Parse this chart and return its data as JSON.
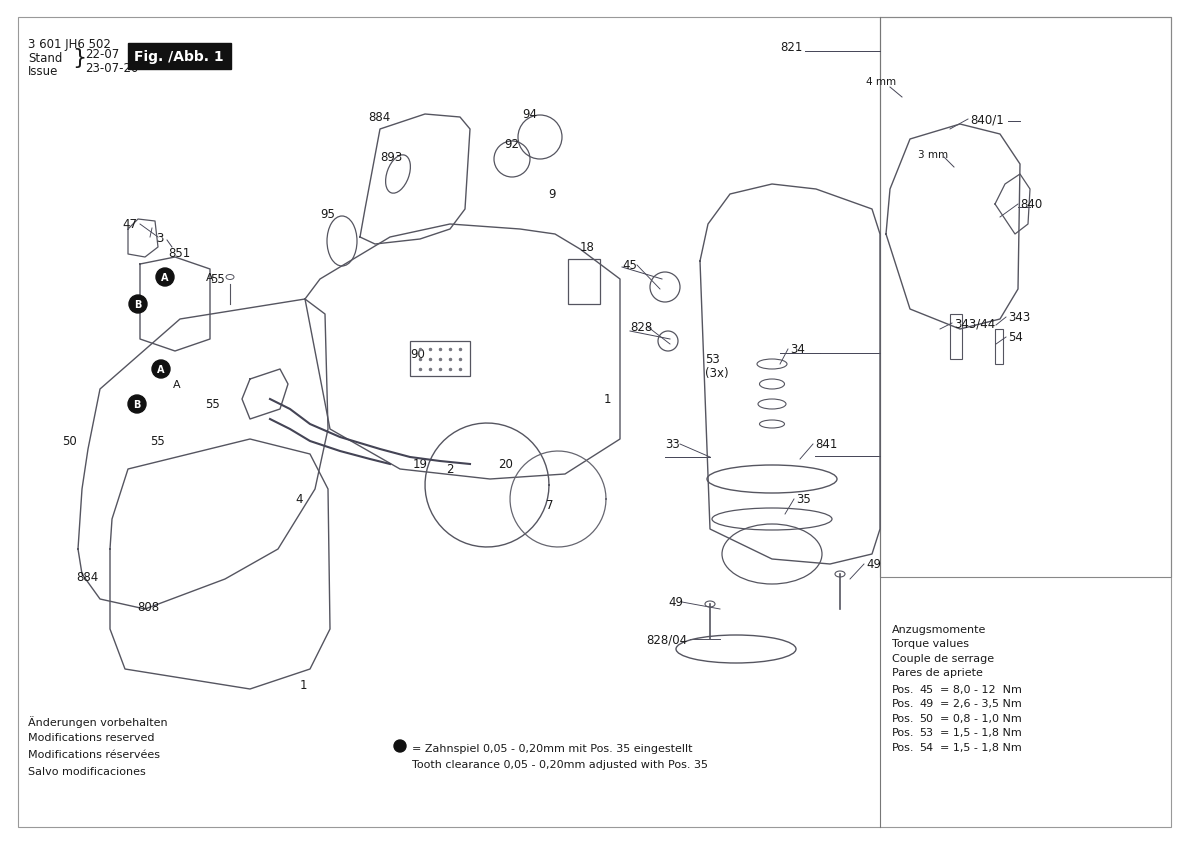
{
  "bg_color": "#ffffff",
  "fig_width": 11.69,
  "fig_height": 8.26,
  "dpi": 100,
  "header_text": "3 601 JH6 502",
  "stand_label": "Stand",
  "stand_brace": "22-07",
  "issue_label": "Issue",
  "issue_date": "23-07-20",
  "fig_label": "Fig. /Abb. 1",
  "fig_label_bg": "#111111",
  "fig_label_color": "#ffffff",
  "bottom_left_lines": [
    "Änderungen vorbehalten",
    "Modifications reserved",
    "Modifications réservées",
    "Salvo modificaciones"
  ],
  "bullet_line1": "= Zahnspiel 0,05 - 0,20mm mit Pos. 35 eingestellt",
  "bullet_line2": "Tooth clearance 0,05 - 0,20mm adjusted with Pos. 35",
  "torque_header": [
    "Anzugsmomente",
    "Torque values",
    "Couple de serrage",
    "Pares de apriete"
  ],
  "torque_values": [
    [
      "Pos.",
      "45",
      "= 8,0 - 12  Nm"
    ],
    [
      "Pos.",
      "49",
      "= 2,6 - 3,5 Nm"
    ],
    [
      "Pos.",
      "50",
      "= 0,8 - 1,0 Nm"
    ],
    [
      "Pos.",
      "53",
      "= 1,5 - 1,8 Nm"
    ],
    [
      "Pos.",
      "54",
      "= 1,5 - 1,8 Nm"
    ]
  ],
  "text_color": "#2a2a3a",
  "label_color": "#1a1a1a",
  "fs": 8.5
}
